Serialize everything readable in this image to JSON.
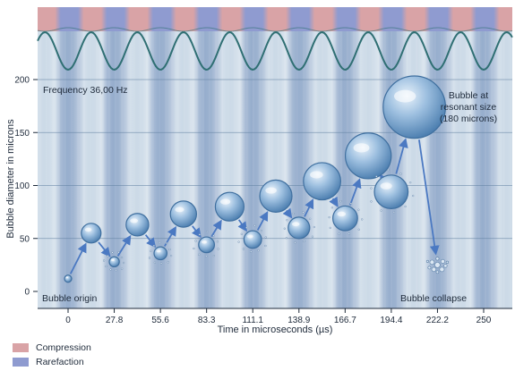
{
  "chart_data": {
    "type": "scatter",
    "xlabel": "Time in microseconds (µs)",
    "ylabel": "Bubble diameter in microns",
    "x_ticks": [
      "0",
      "27.8",
      "55.6",
      "83.3",
      "111.1",
      "138.9",
      "166.7",
      "194.4",
      "222.2",
      "250"
    ],
    "y_ticks": [
      0,
      50,
      100,
      150,
      200
    ],
    "xlim": [
      0,
      250
    ],
    "ylim": [
      0,
      200
    ],
    "grid": "horizontal",
    "series": [
      {
        "x": [
          0,
          13.9,
          27.8,
          41.7,
          55.6,
          69.4,
          83.3,
          97.2,
          111.1,
          125.0,
          138.9,
          152.8,
          166.7,
          180.6,
          194.4,
          208.3
        ],
        "y": [
          12,
          55,
          28,
          63,
          36,
          73,
          44,
          80,
          49,
          90,
          60,
          104,
          69,
          128,
          94,
          174
        ]
      }
    ],
    "collapse": {
      "x": 222.2,
      "y": 25
    },
    "annotations": {
      "frequency": "Frequency 36,00 Hz",
      "origin": "Bubble origin",
      "collapse": "Bubble collapse",
      "resonant": [
        "Bubble at",
        "resonant size",
        "(180 microns)"
      ]
    }
  },
  "legend": [
    {
      "label": "Compression",
      "color": "#d9a3a6"
    },
    {
      "label": "Rarefaction",
      "color": "#8f9bd0"
    }
  ],
  "colors": {
    "band_blue": "#8aa4c7",
    "band_light": "#c5d5e4",
    "wave": "#2f6f73",
    "bubble": "#5d8fc0",
    "arrow": "#4b79c2"
  }
}
